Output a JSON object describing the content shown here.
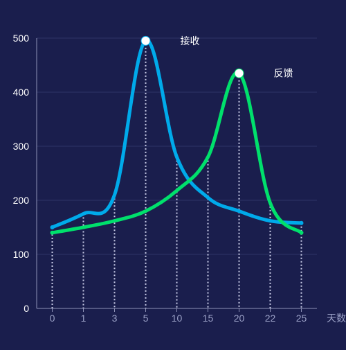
{
  "chart_data": {
    "type": "line",
    "categories": [
      "0",
      "1",
      "3",
      "5",
      "10",
      "15",
      "20",
      "22",
      "25"
    ],
    "xlabel": "天数",
    "ylim": [
      0,
      500
    ],
    "yticks": [
      "0",
      "100",
      "200",
      "300",
      "400",
      "500"
    ],
    "smooth": true,
    "grid": true,
    "series": [
      {
        "name": "接收",
        "color": "#00aaea",
        "points": [
          [
            0,
            150
          ],
          [
            1,
            175
          ],
          [
            3,
            210
          ],
          [
            5,
            495
          ],
          [
            10,
            280
          ],
          [
            15,
            205
          ],
          [
            20,
            180
          ],
          [
            22,
            162
          ],
          [
            25,
            158
          ]
        ],
        "peak": [
          5,
          495
        ]
      },
      {
        "name": "反馈",
        "color": "#00e06c",
        "points": [
          [
            0,
            140
          ],
          [
            1,
            150
          ],
          [
            3,
            162
          ],
          [
            5,
            180
          ],
          [
            10,
            218
          ],
          [
            15,
            280
          ],
          [
            20,
            435
          ],
          [
            22,
            195
          ],
          [
            25,
            140
          ]
        ],
        "peak": [
          20,
          435
        ]
      }
    ],
    "background": "#1a1e4d",
    "gridColor": "#2f3466",
    "axisColor": "#8f93b8",
    "tickLabelColor": "#9aa0c6",
    "yLabelColor": "#ffffff"
  }
}
